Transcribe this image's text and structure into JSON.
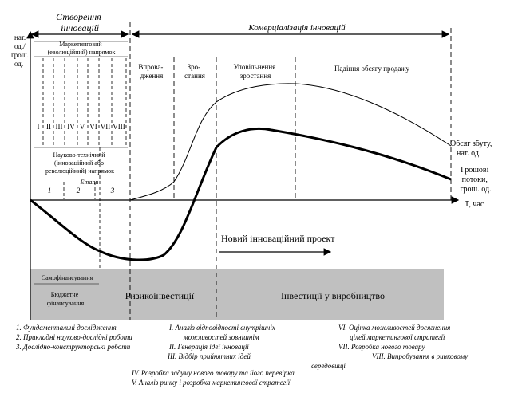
{
  "y_axis_label": [
    "нат.",
    "од./",
    "грош.",
    "од."
  ],
  "x_axis_label": "T, час",
  "phases": {
    "creation": [
      "Створення",
      "інновацій"
    ],
    "commercialization": "Комерціалізація інновацій"
  },
  "evolutionary": [
    "Маркетинговий",
    "(еволюційний) напрямок"
  ],
  "roman_stages": [
    "I",
    "II",
    "III",
    "IV",
    "V",
    "VI",
    "VII",
    "VIII"
  ],
  "revolutionary": [
    "Науково-технічний",
    "(інноваційний або",
    "революційний) напрямок"
  ],
  "stages_label": "Етапи",
  "stage_numbers": [
    "1",
    "2",
    "3"
  ],
  "lifecycle": {
    "introduction": [
      "Впрова-",
      "дження"
    ],
    "growth": [
      "Зро-",
      "стання"
    ],
    "slowdown": [
      "Уповільнення",
      "зростання"
    ],
    "decline": "Падіння обсягу продажу"
  },
  "curve_labels": {
    "sales": [
      "Обсяг збуту,",
      "нат. од."
    ],
    "cash": [
      "Грошові",
      "потоки,",
      "грош. од."
    ]
  },
  "new_project": "Новий інноваційний проект",
  "financing": {
    "self": "Самофінансування",
    "budget": [
      "Бюджетне",
      "фінансування"
    ],
    "venture": "Ризикоінвестиції",
    "production": "Інвестиції у виробництво"
  },
  "legend": {
    "col1": [
      "1. Фундаментальні дослідження",
      "2. Прикладні науково-дослідні роботи",
      "3. Дослідно-конструкторські роботи"
    ],
    "col2": [
      "I. Аналіз відповідності внутрішніх",
      "можливостей зовнішнім",
      "II. Генерація ідеї інновації",
      "III. Відбір прийнятних ідей"
    ],
    "col3": [
      "VI. Оцінка можливостей досягнення",
      "цілей маркетингової стратегії",
      "VII. Розробка нового товару",
      "VIII. Випробування в ринковому"
    ],
    "col3_cont": "середовищі",
    "bottom": [
      "IV. Розробка задуму нового товару та його перевірка",
      "V. Аналіз ринку і розробка маркетингової стратегії"
    ]
  }
}
